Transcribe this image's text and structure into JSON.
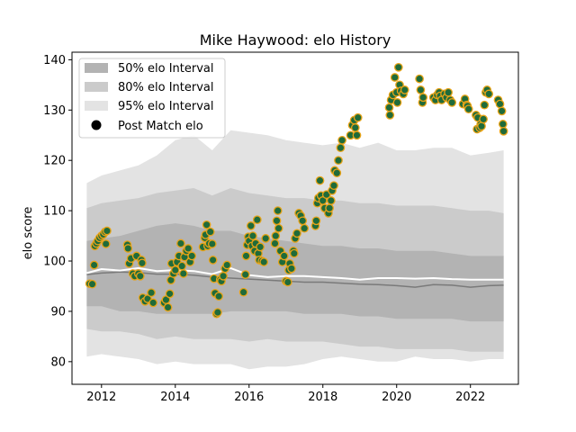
{
  "chart_data": {
    "type": "scatter",
    "title": "Mike Haywood: elo History",
    "xlabel": "",
    "ylabel": "elo score",
    "xlim": [
      2011.2,
      2023.3
    ],
    "ylim": [
      75.5,
      141.5
    ],
    "x_ticks": [
      2012,
      2014,
      2016,
      2018,
      2020,
      2022
    ],
    "y_ticks": [
      80,
      90,
      100,
      110,
      120,
      130,
      140
    ],
    "legend_position": "upper-left",
    "legend": [
      {
        "label": "50% elo Interval",
        "color": "#b3b3b3"
      },
      {
        "label": "80% elo Interval",
        "color": "#cbcbcb"
      },
      {
        "label": "95% elo Interval",
        "color": "#e3e3e3"
      },
      {
        "label": "Post Match elo",
        "color": "#000000"
      }
    ],
    "bands": {
      "x": [
        2011.6,
        2012.0,
        2012.5,
        2013.0,
        2013.5,
        2014.0,
        2014.5,
        2015.0,
        2015.5,
        2016.0,
        2016.5,
        2017.0,
        2017.5,
        2018.0,
        2018.5,
        2019.0,
        2019.5,
        2020.0,
        2020.5,
        2021.0,
        2021.5,
        2022.0,
        2022.5,
        2022.9
      ],
      "upper95": [
        115.5,
        117.0,
        118.0,
        119.0,
        121.0,
        124.0,
        125.0,
        122.0,
        126.0,
        125.5,
        125.0,
        124.0,
        123.5,
        123.0,
        123.5,
        122.5,
        123.5,
        122.0,
        122.0,
        122.5,
        122.5,
        121.0,
        121.5,
        122.0
      ],
      "upper80": [
        110.5,
        111.5,
        112.0,
        112.5,
        113.5,
        114.0,
        114.5,
        113.0,
        114.5,
        113.5,
        113.0,
        112.5,
        112.5,
        112.0,
        112.0,
        111.5,
        111.5,
        111.0,
        111.0,
        111.0,
        110.5,
        110.0,
        110.0,
        109.5
      ],
      "upper50": [
        104.0,
        104.5,
        105.0,
        106.0,
        107.0,
        107.5,
        107.0,
        106.0,
        106.0,
        105.0,
        104.5,
        104.0,
        103.5,
        103.0,
        103.0,
        102.5,
        102.5,
        102.0,
        102.0,
        102.0,
        101.5,
        101.0,
        101.0,
        101.0
      ],
      "lower50": [
        91.0,
        91.0,
        90.0,
        90.0,
        89.5,
        89.5,
        89.5,
        89.5,
        90.0,
        90.0,
        90.0,
        90.0,
        89.5,
        89.5,
        89.5,
        89.0,
        89.0,
        88.5,
        88.5,
        88.5,
        88.5,
        88.0,
        88.0,
        88.0
      ],
      "lower80": [
        86.5,
        86.0,
        86.0,
        85.5,
        84.5,
        85.0,
        84.5,
        84.5,
        84.5,
        84.0,
        84.5,
        84.0,
        84.0,
        84.0,
        83.5,
        83.0,
        83.0,
        82.5,
        82.5,
        82.5,
        82.5,
        82.0,
        82.0,
        82.0
      ],
      "lower95": [
        81.0,
        81.5,
        81.0,
        80.5,
        79.5,
        80.0,
        79.5,
        79.5,
        79.5,
        78.5,
        79.0,
        79.0,
        79.5,
        80.5,
        81.0,
        80.5,
        80.0,
        80.0,
        81.0,
        80.5,
        80.5,
        80.0,
        80.5,
        80.5
      ],
      "median": [
        97.3,
        97.6,
        97.8,
        97.7,
        97.4,
        97.4,
        97.2,
        96.8,
        96.6,
        96.4,
        96.2,
        96.0,
        95.8,
        95.8,
        95.6,
        95.4,
        95.3,
        95.1,
        94.8,
        95.3,
        95.2,
        94.8,
        95.1,
        95.2
      ]
    },
    "mean_line": {
      "x": [
        2011.6,
        2012.0,
        2012.5,
        2013.0,
        2013.5,
        2014.0,
        2014.5,
        2015.0,
        2015.5,
        2016.0,
        2016.5,
        2017.0,
        2017.5,
        2018.0,
        2018.5,
        2019.0,
        2019.5,
        2020.0,
        2020.5,
        2021.0,
        2021.5,
        2022.0,
        2022.5,
        2022.9
      ],
      "y": [
        97.6,
        98.4,
        98.1,
        98.6,
        98.0,
        98.2,
        98.0,
        97.4,
        98.6,
        97.2,
        96.8,
        97.0,
        97.0,
        96.8,
        96.6,
        96.3,
        96.6,
        96.6,
        96.5,
        96.6,
        96.4,
        96.3,
        96.3,
        96.3
      ]
    },
    "series": [
      {
        "name": "Post Match elo",
        "points": [
          [
            2011.68,
            95.5
          ],
          [
            2011.75,
            95.4
          ],
          [
            2011.8,
            99.2
          ],
          [
            2011.82,
            103.0
          ],
          [
            2011.86,
            103.5
          ],
          [
            2011.9,
            104.0
          ],
          [
            2011.95,
            104.6
          ],
          [
            2012.0,
            105.0
          ],
          [
            2012.05,
            105.3
          ],
          [
            2012.1,
            105.8
          ],
          [
            2012.15,
            106.0
          ],
          [
            2012.12,
            103.4
          ],
          [
            2012.7,
            103.2
          ],
          [
            2012.72,
            102.5
          ],
          [
            2012.75,
            99.5
          ],
          [
            2012.8,
            100.5
          ],
          [
            2012.85,
            97.5
          ],
          [
            2012.9,
            97.0
          ],
          [
            2012.95,
            101.0
          ],
          [
            2013.0,
            97.5
          ],
          [
            2013.05,
            97.0
          ],
          [
            2013.08,
            100.2
          ],
          [
            2013.1,
            99.6
          ],
          [
            2013.12,
            92.7
          ],
          [
            2013.18,
            92.0
          ],
          [
            2013.25,
            92.5
          ],
          [
            2013.35,
            93.7
          ],
          [
            2013.4,
            91.7
          ],
          [
            2013.7,
            91.7
          ],
          [
            2013.75,
            92.3
          ],
          [
            2013.8,
            90.8
          ],
          [
            2013.85,
            93.5
          ],
          [
            2013.88,
            96.2
          ],
          [
            2013.9,
            99.5
          ],
          [
            2013.95,
            97.5
          ],
          [
            2014.0,
            98.2
          ],
          [
            2014.05,
            99.8
          ],
          [
            2014.1,
            101.0
          ],
          [
            2014.15,
            103.5
          ],
          [
            2014.18,
            99.0
          ],
          [
            2014.22,
            97.5
          ],
          [
            2014.25,
            100.8
          ],
          [
            2014.3,
            102.0
          ],
          [
            2014.35,
            102.5
          ],
          [
            2014.4,
            99.8
          ],
          [
            2014.45,
            101.0
          ],
          [
            2014.75,
            102.8
          ],
          [
            2014.8,
            104.6
          ],
          [
            2014.82,
            105.2
          ],
          [
            2014.85,
            107.2
          ],
          [
            2014.88,
            103.0
          ],
          [
            2014.92,
            103.5
          ],
          [
            2014.95,
            105.8
          ],
          [
            2015.0,
            103.4
          ],
          [
            2015.02,
            100.2
          ],
          [
            2015.05,
            96.5
          ],
          [
            2015.08,
            93.6
          ],
          [
            2015.12,
            89.5
          ],
          [
            2015.15,
            89.8
          ],
          [
            2015.18,
            93.0
          ],
          [
            2015.22,
            96.3
          ],
          [
            2015.25,
            96.0
          ],
          [
            2015.3,
            97.0
          ],
          [
            2015.35,
            98.5
          ],
          [
            2015.4,
            99.2
          ],
          [
            2015.85,
            93.8
          ],
          [
            2015.9,
            97.3
          ],
          [
            2015.92,
            101.0
          ],
          [
            2015.95,
            103.2
          ],
          [
            2015.98,
            104.8
          ],
          [
            2016.0,
            104.0
          ],
          [
            2016.05,
            107.0
          ],
          [
            2016.08,
            103.0
          ],
          [
            2016.1,
            105.0
          ],
          [
            2016.15,
            102.0
          ],
          [
            2016.18,
            103.5
          ],
          [
            2016.22,
            108.2
          ],
          [
            2016.25,
            101.5
          ],
          [
            2016.28,
            100.2
          ],
          [
            2016.3,
            102.8
          ],
          [
            2016.35,
            100.0
          ],
          [
            2016.4,
            99.8
          ],
          [
            2016.45,
            104.5
          ],
          [
            2016.7,
            103.5
          ],
          [
            2016.72,
            105.0
          ],
          [
            2016.75,
            108.0
          ],
          [
            2016.78,
            110.0
          ],
          [
            2016.8,
            106.5
          ],
          [
            2016.85,
            102.0
          ],
          [
            2016.9,
            99.8
          ],
          [
            2016.95,
            101.0
          ],
          [
            2017.0,
            96.0
          ],
          [
            2017.05,
            95.8
          ],
          [
            2017.08,
            98.2
          ],
          [
            2017.1,
            99.5
          ],
          [
            2017.15,
            98.5
          ],
          [
            2017.2,
            102.0
          ],
          [
            2017.22,
            101.5
          ],
          [
            2017.25,
            104.5
          ],
          [
            2017.3,
            105.5
          ],
          [
            2017.35,
            109.5
          ],
          [
            2017.4,
            109.0
          ],
          [
            2017.45,
            108.0
          ],
          [
            2017.5,
            106.5
          ],
          [
            2017.8,
            107.0
          ],
          [
            2017.82,
            108.0
          ],
          [
            2017.85,
            111.5
          ],
          [
            2017.88,
            112.5
          ],
          [
            2017.92,
            116.0
          ],
          [
            2017.95,
            113.0
          ],
          [
            2018.0,
            112.0
          ],
          [
            2018.05,
            110.5
          ],
          [
            2018.1,
            113.2
          ],
          [
            2018.15,
            109.5
          ],
          [
            2018.18,
            110.5
          ],
          [
            2018.22,
            112.0
          ],
          [
            2018.25,
            114.0
          ],
          [
            2018.3,
            115.0
          ],
          [
            2018.32,
            118.0
          ],
          [
            2018.38,
            117.5
          ],
          [
            2018.42,
            120.0
          ],
          [
            2018.48,
            122.5
          ],
          [
            2018.52,
            124.0
          ],
          [
            2018.75,
            125.0
          ],
          [
            2018.8,
            127.0
          ],
          [
            2018.85,
            128.0
          ],
          [
            2018.88,
            126.5
          ],
          [
            2018.92,
            125.0
          ],
          [
            2018.95,
            128.5
          ],
          [
            2019.8,
            130.5
          ],
          [
            2019.82,
            129.0
          ],
          [
            2019.85,
            132.0
          ],
          [
            2019.9,
            133.0
          ],
          [
            2019.95,
            136.5
          ],
          [
            2020.0,
            133.5
          ],
          [
            2020.02,
            131.5
          ],
          [
            2020.05,
            138.5
          ],
          [
            2020.08,
            135.0
          ],
          [
            2020.12,
            133.8
          ],
          [
            2020.18,
            133.2
          ],
          [
            2020.22,
            134.0
          ],
          [
            2020.62,
            136.2
          ],
          [
            2020.65,
            134.0
          ],
          [
            2020.7,
            131.5
          ],
          [
            2020.72,
            132.5
          ],
          [
            2021.0,
            132.5
          ],
          [
            2021.05,
            132.0
          ],
          [
            2021.1,
            133.0
          ],
          [
            2021.15,
            133.5
          ],
          [
            2021.18,
            132.8
          ],
          [
            2021.22,
            132.0
          ],
          [
            2021.3,
            133.2
          ],
          [
            2021.35,
            132.5
          ],
          [
            2021.4,
            133.5
          ],
          [
            2021.45,
            132.0
          ],
          [
            2021.5,
            131.5
          ],
          [
            2021.8,
            131.2
          ],
          [
            2021.85,
            132.2
          ],
          [
            2021.9,
            131.0
          ],
          [
            2021.92,
            130.8
          ],
          [
            2021.95,
            130.2
          ],
          [
            2022.15,
            129.0
          ],
          [
            2022.18,
            126.2
          ],
          [
            2022.2,
            128.5
          ],
          [
            2022.25,
            126.5
          ],
          [
            2022.28,
            127.2
          ],
          [
            2022.3,
            126.8
          ],
          [
            2022.35,
            128.2
          ],
          [
            2022.38,
            131.0
          ],
          [
            2022.42,
            133.5
          ],
          [
            2022.45,
            134.0
          ],
          [
            2022.5,
            133.2
          ],
          [
            2022.75,
            132.0
          ],
          [
            2022.8,
            131.2
          ],
          [
            2022.85,
            129.8
          ],
          [
            2022.88,
            127.2
          ],
          [
            2022.9,
            125.8
          ]
        ]
      }
    ]
  }
}
